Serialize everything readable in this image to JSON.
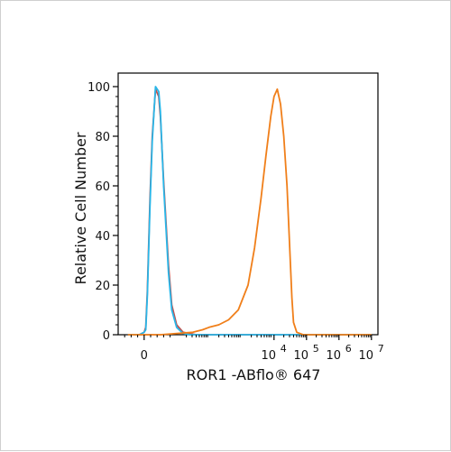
{
  "chart_data": {
    "type": "line",
    "xlabel": "ROR1 -ABflo® 647",
    "ylabel": "Relative Cell Number",
    "x_scale": "biexponential (log decades above linear region)",
    "ylim": [
      0,
      100
    ],
    "y_ticks": [
      0,
      20,
      40,
      60,
      80,
      100
    ],
    "x_tick_labels": [
      {
        "mantissa": "0",
        "exp": ""
      },
      {
        "mantissa": "10",
        "exp": "4"
      },
      {
        "mantissa": "10",
        "exp": "5"
      },
      {
        "mantissa": "10",
        "exp": "6"
      },
      {
        "mantissa": "10",
        "exp": "7"
      }
    ],
    "grid": false,
    "legend": "none",
    "series": [
      {
        "color": "#c0504d",
        "x": [
          -0.5,
          -0.3,
          -0.15,
          0,
          0.05,
          0.1,
          0.18,
          0.25,
          0.35,
          0.45,
          0.5,
          0.6,
          0.75,
          0.85,
          1.0,
          1.2,
          1.4,
          1.6,
          1.8,
          2.0,
          2.5,
          3.0,
          3.5,
          4.0,
          4.5,
          5.0,
          5.5,
          6.0,
          6.5,
          7.0
        ],
        "y": [
          0,
          0,
          0,
          1,
          3,
          18,
          55,
          80,
          99,
          96,
          88,
          62,
          28,
          12,
          4,
          1,
          0.5,
          0,
          0,
          0,
          0,
          0,
          0,
          0,
          0,
          0,
          0,
          0,
          0,
          0
        ]
      },
      {
        "color": "#29b6e8",
        "x": [
          -0.5,
          -0.3,
          -0.15,
          0,
          0.05,
          0.1,
          0.18,
          0.25,
          0.35,
          0.45,
          0.5,
          0.6,
          0.75,
          0.85,
          1.0,
          1.2,
          1.4,
          1.6,
          1.8,
          2.0,
          2.5,
          3.0,
          3.5,
          4.0,
          4.5,
          5.0,
          5.5,
          6.0,
          6.5,
          7.0
        ],
        "y": [
          0,
          0,
          0,
          1,
          2,
          16,
          52,
          78,
          100,
          98,
          90,
          60,
          25,
          10,
          3,
          0.5,
          0,
          0,
          0,
          0,
          0,
          0,
          0,
          0,
          0,
          0,
          0,
          0,
          0,
          0
        ]
      },
      {
        "color": "#f07f1a",
        "x": [
          -0.5,
          0.5,
          1.0,
          1.5,
          1.8,
          2.0,
          2.3,
          2.6,
          2.9,
          3.2,
          3.4,
          3.6,
          3.75,
          3.9,
          4.0,
          4.1,
          4.2,
          4.3,
          4.4,
          4.5,
          4.55,
          4.6,
          4.7,
          4.9,
          5.2,
          6.0,
          7.0
        ],
        "y": [
          0,
          0,
          0.5,
          1,
          2,
          3,
          4,
          6,
          10,
          20,
          35,
          55,
          72,
          88,
          96,
          99,
          93,
          80,
          60,
          30,
          15,
          5,
          1,
          0,
          0,
          0,
          0
        ]
      }
    ]
  }
}
